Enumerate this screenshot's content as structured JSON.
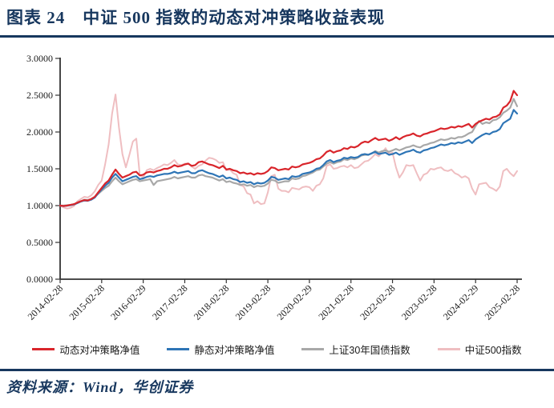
{
  "header": {
    "label": "图表 24",
    "title": "中证 500 指数的动态对冲策略收益表现"
  },
  "source": {
    "text": "资料来源：Wind，华创证券"
  },
  "colors": {
    "accent_navy": "#17375E",
    "axis": "#333333",
    "tick_text": "#1a1a1a"
  },
  "chart_data": {
    "type": "line",
    "title": "中证500指数的动态对冲策略收益表现",
    "xlabel": "",
    "ylabel": "",
    "ylim": [
      0.0,
      3.0
    ],
    "grid": false,
    "legend_position": "bottom",
    "x_start": "2014-02-28",
    "x_end": "2025-02-28",
    "x_frequency": "monthly",
    "x_points": 133,
    "y_tick_labels": [
      "0.0000",
      "0.5000",
      "1.0000",
      "1.5000",
      "2.0000",
      "2.5000",
      "3.0000"
    ],
    "y_tick_values": [
      0.0,
      0.5,
      1.0,
      1.5,
      2.0,
      2.5,
      3.0
    ],
    "x_tick_labels": [
      "2014-02-28",
      "2015-02-28",
      "2016-02-29",
      "2017-02-28",
      "2018-02-28",
      "2019-02-28",
      "2020-02-29",
      "2021-02-28",
      "2022-02-28",
      "2023-02-28",
      "2024-02-29",
      "2025-02-28"
    ],
    "series": [
      {
        "name": "动态对冲策略净值",
        "color": "#D9252B",
        "width": 2.2,
        "values": [
          1.0,
          0.995,
          1.0,
          1.01,
          1.02,
          1.04,
          1.06,
          1.075,
          1.07,
          1.09,
          1.12,
          1.18,
          1.24,
          1.3,
          1.34,
          1.42,
          1.49,
          1.43,
          1.38,
          1.4,
          1.42,
          1.45,
          1.46,
          1.41,
          1.42,
          1.45,
          1.46,
          1.45,
          1.47,
          1.48,
          1.5,
          1.5,
          1.52,
          1.55,
          1.53,
          1.54,
          1.56,
          1.57,
          1.54,
          1.55,
          1.59,
          1.6,
          1.58,
          1.56,
          1.55,
          1.53,
          1.51,
          1.54,
          1.49,
          1.5,
          1.48,
          1.47,
          1.44,
          1.45,
          1.43,
          1.44,
          1.42,
          1.44,
          1.43,
          1.44,
          1.47,
          1.52,
          1.51,
          1.48,
          1.49,
          1.5,
          1.49,
          1.53,
          1.52,
          1.53,
          1.56,
          1.57,
          1.58,
          1.6,
          1.63,
          1.64,
          1.68,
          1.73,
          1.75,
          1.72,
          1.74,
          1.75,
          1.78,
          1.77,
          1.8,
          1.79,
          1.81,
          1.85,
          1.87,
          1.86,
          1.89,
          1.92,
          1.89,
          1.9,
          1.91,
          1.88,
          1.9,
          1.93,
          1.9,
          1.93,
          1.95,
          1.96,
          1.98,
          1.95,
          1.94,
          1.97,
          1.98,
          2.0,
          2.01,
          2.03,
          2.05,
          2.04,
          2.05,
          2.07,
          2.06,
          2.08,
          2.07,
          2.09,
          2.11,
          2.06,
          2.11,
          2.14,
          2.16,
          2.18,
          2.17,
          2.2,
          2.21,
          2.24,
          2.33,
          2.36,
          2.42,
          2.56,
          2.5
        ]
      },
      {
        "name": "静态对冲策略净值",
        "color": "#2E75B6",
        "width": 2.2,
        "values": [
          1.0,
          0.993,
          0.998,
          1.005,
          1.015,
          1.035,
          1.055,
          1.07,
          1.065,
          1.08,
          1.11,
          1.17,
          1.22,
          1.27,
          1.31,
          1.38,
          1.43,
          1.38,
          1.33,
          1.35,
          1.37,
          1.39,
          1.4,
          1.36,
          1.37,
          1.39,
          1.4,
          1.39,
          1.41,
          1.42,
          1.43,
          1.43,
          1.44,
          1.46,
          1.44,
          1.45,
          1.46,
          1.47,
          1.44,
          1.44,
          1.47,
          1.48,
          1.46,
          1.44,
          1.43,
          1.41,
          1.39,
          1.41,
          1.37,
          1.38,
          1.36,
          1.35,
          1.32,
          1.33,
          1.31,
          1.32,
          1.29,
          1.31,
          1.3,
          1.31,
          1.34,
          1.39,
          1.38,
          1.35,
          1.36,
          1.37,
          1.36,
          1.4,
          1.39,
          1.4,
          1.43,
          1.44,
          1.45,
          1.47,
          1.5,
          1.51,
          1.55,
          1.6,
          1.62,
          1.59,
          1.61,
          1.62,
          1.65,
          1.64,
          1.66,
          1.65,
          1.66,
          1.69,
          1.7,
          1.69,
          1.71,
          1.73,
          1.7,
          1.71,
          1.72,
          1.69,
          1.7,
          1.72,
          1.69,
          1.71,
          1.73,
          1.74,
          1.76,
          1.73,
          1.72,
          1.75,
          1.76,
          1.78,
          1.79,
          1.81,
          1.83,
          1.82,
          1.83,
          1.85,
          1.84,
          1.86,
          1.85,
          1.87,
          1.89,
          1.85,
          1.9,
          1.93,
          1.96,
          1.98,
          1.97,
          2.0,
          2.01,
          2.04,
          2.12,
          2.15,
          2.18,
          2.3,
          2.25
        ]
      },
      {
        "name": "上证30年国债指数",
        "color": "#A8A8A8",
        "width": 2.2,
        "values": [
          1.0,
          1.0,
          1.005,
          1.01,
          1.02,
          1.04,
          1.06,
          1.08,
          1.075,
          1.09,
          1.12,
          1.16,
          1.2,
          1.24,
          1.27,
          1.33,
          1.38,
          1.33,
          1.29,
          1.31,
          1.33,
          1.35,
          1.36,
          1.33,
          1.34,
          1.35,
          1.36,
          1.28,
          1.33,
          1.34,
          1.35,
          1.36,
          1.37,
          1.39,
          1.37,
          1.38,
          1.39,
          1.4,
          1.38,
          1.38,
          1.41,
          1.42,
          1.4,
          1.39,
          1.38,
          1.36,
          1.34,
          1.36,
          1.32,
          1.33,
          1.31,
          1.3,
          1.28,
          1.29,
          1.27,
          1.28,
          1.25,
          1.27,
          1.26,
          1.27,
          1.3,
          1.35,
          1.34,
          1.31,
          1.32,
          1.33,
          1.33,
          1.37,
          1.36,
          1.37,
          1.4,
          1.41,
          1.43,
          1.45,
          1.48,
          1.49,
          1.53,
          1.57,
          1.59,
          1.57,
          1.59,
          1.6,
          1.63,
          1.62,
          1.64,
          1.63,
          1.65,
          1.68,
          1.69,
          1.69,
          1.71,
          1.74,
          1.72,
          1.74,
          1.75,
          1.73,
          1.75,
          1.77,
          1.75,
          1.77,
          1.79,
          1.8,
          1.82,
          1.8,
          1.79,
          1.82,
          1.83,
          1.85,
          1.86,
          1.88,
          1.9,
          1.89,
          1.9,
          1.92,
          1.91,
          1.93,
          1.93,
          1.95,
          1.98,
          2.0,
          2.08,
          2.15,
          2.11,
          2.13,
          2.12,
          2.16,
          2.17,
          2.2,
          2.26,
          2.29,
          2.33,
          2.45,
          2.35
        ]
      },
      {
        "name": "中证500指数",
        "color": "#EFBEC1",
        "width": 2.0,
        "values": [
          1.0,
          0.975,
          0.96,
          0.97,
          0.995,
          1.06,
          1.09,
          1.12,
          1.11,
          1.14,
          1.195,
          1.28,
          1.34,
          1.56,
          1.83,
          2.25,
          2.51,
          2.06,
          1.7,
          1.52,
          1.69,
          1.87,
          1.91,
          1.42,
          1.38,
          1.48,
          1.5,
          1.48,
          1.51,
          1.53,
          1.56,
          1.55,
          1.58,
          1.62,
          1.56,
          1.55,
          1.57,
          1.575,
          1.53,
          1.5,
          1.54,
          1.56,
          1.61,
          1.65,
          1.64,
          1.62,
          1.58,
          1.59,
          1.48,
          1.49,
          1.44,
          1.42,
          1.28,
          1.26,
          1.17,
          1.15,
          1.03,
          1.06,
          1.02,
          1.03,
          1.18,
          1.4,
          1.42,
          1.23,
          1.2,
          1.2,
          1.18,
          1.24,
          1.23,
          1.22,
          1.25,
          1.26,
          1.25,
          1.2,
          1.27,
          1.29,
          1.37,
          1.54,
          1.56,
          1.5,
          1.51,
          1.53,
          1.54,
          1.52,
          1.55,
          1.51,
          1.52,
          1.56,
          1.6,
          1.61,
          1.65,
          1.7,
          1.67,
          1.72,
          1.78,
          1.7,
          1.72,
          1.52,
          1.38,
          1.45,
          1.55,
          1.54,
          1.55,
          1.44,
          1.34,
          1.42,
          1.44,
          1.5,
          1.49,
          1.51,
          1.52,
          1.48,
          1.47,
          1.49,
          1.44,
          1.42,
          1.38,
          1.4,
          1.37,
          1.23,
          1.15,
          1.29,
          1.3,
          1.31,
          1.25,
          1.23,
          1.2,
          1.26,
          1.47,
          1.5,
          1.44,
          1.4,
          1.47
        ]
      }
    ]
  }
}
